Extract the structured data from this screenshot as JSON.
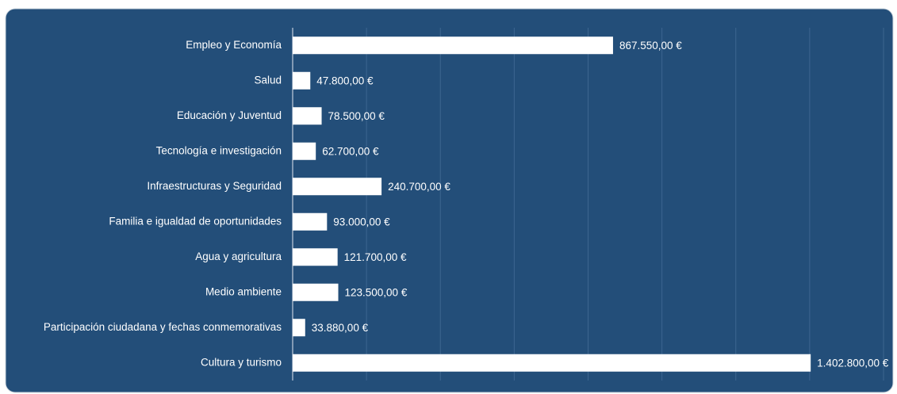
{
  "chart_data": {
    "type": "barh",
    "categories": [
      "Empleo y Economía",
      "Salud",
      "Educación y Juventud",
      "Tecnología e investigación",
      "Infraestructuras y Seguridad",
      "Familia e igualdad de oportunidades",
      "Agua y agricultura",
      "Medio ambiente",
      "Participación ciudadana y fechas conmemorativas",
      "Cultura y turismo"
    ],
    "values": [
      867550,
      47800,
      78500,
      62700,
      240700,
      93000,
      121700,
      123500,
      33880,
      1402800
    ],
    "value_labels": [
      "867.550,00 €",
      "47.800,00 €",
      "78.500,00 €",
      "62.700,00 €",
      "240.700,00 €",
      "93.000,00 €",
      "121.700,00 €",
      "123.500,00 €",
      "33.880,00 €",
      "1.402.800,00 €"
    ],
    "color": "#ffffff",
    "xlim": [
      0,
      1600000
    ],
    "xticks": [
      0,
      200000,
      400000,
      600000,
      800000,
      1000000,
      1200000,
      1400000,
      1600000
    ],
    "grid": true
  }
}
